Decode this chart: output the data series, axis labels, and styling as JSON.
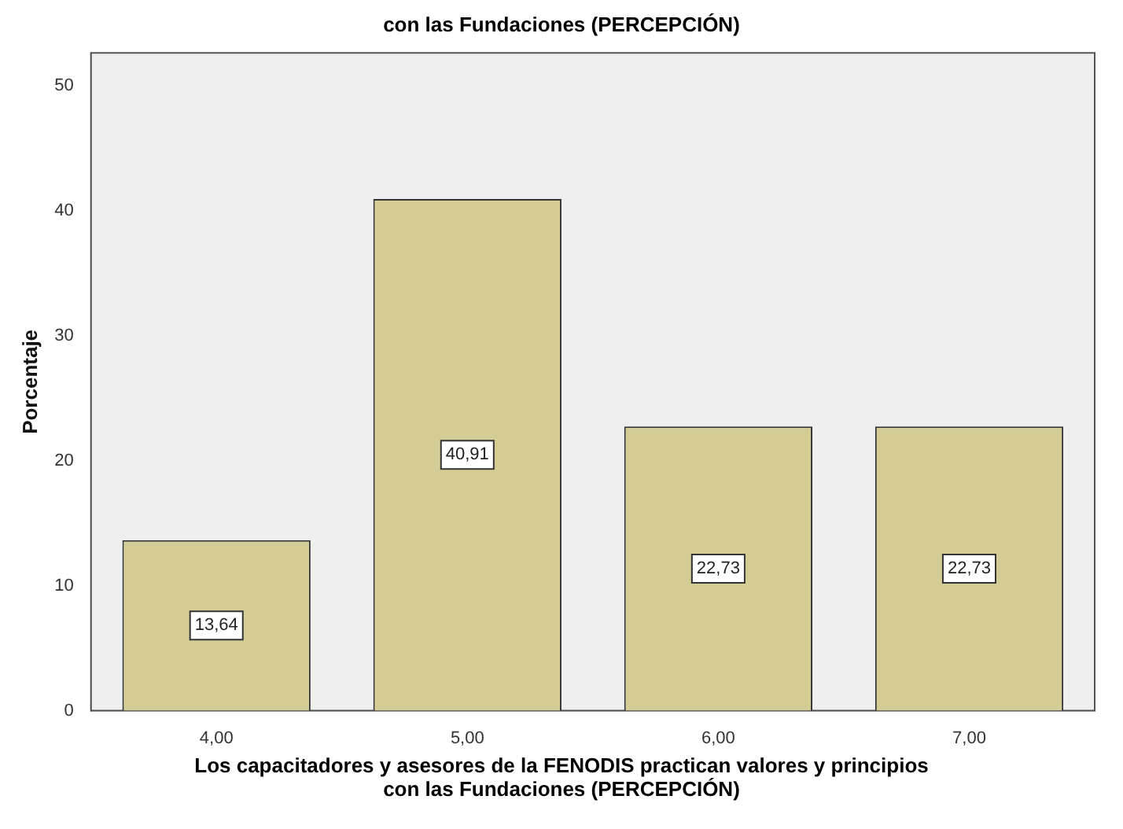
{
  "chart_data": {
    "type": "bar",
    "title": "con las Fundaciones (PERCEPCIÓN)",
    "xlabel": "Los capacitadores y asesores de la FENODIS practican valores y principios con las Fundaciones (PERCEPCIÓN)",
    "ylabel": "Porcentaje",
    "categories": [
      "4,00",
      "5,00",
      "6,00",
      "7,00"
    ],
    "values": [
      13.64,
      40.91,
      22.73,
      22.73
    ],
    "value_labels": [
      "13,64",
      "40,91",
      "22,73",
      "22,73"
    ],
    "color": "#d3cc94",
    "ylim": [
      0,
      52.6
    ],
    "yticks": [
      0,
      10,
      20,
      30,
      40,
      50
    ],
    "grid": false,
    "legend": false
  }
}
